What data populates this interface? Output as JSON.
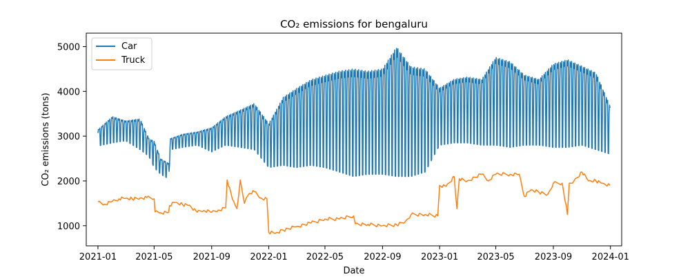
{
  "chart_data": {
    "type": "line",
    "title": "CO₂ emissions for bengaluru",
    "xlabel": "Date",
    "ylabel": "CO₂ emissions (tons)",
    "xlim": [
      "2020-12-07",
      "2024-01-25"
    ],
    "ylim": [
      550,
      5300
    ],
    "x_ticks": [
      "2021-01",
      "2021-05",
      "2021-09",
      "2022-01",
      "2022-05",
      "2022-09",
      "2023-01",
      "2023-05",
      "2023-09",
      "2024-01"
    ],
    "y_ticks": [
      1000,
      2000,
      3000,
      4000,
      5000
    ],
    "grid": false,
    "legend_position": "top-left",
    "series": [
      {
        "name": "Car",
        "color": "#1f77b4",
        "envelope": [
          {
            "x": "2021-01-01",
            "low": 2780,
            "high": 3150
          },
          {
            "x": "2021-02-01",
            "low": 2850,
            "high": 3450
          },
          {
            "x": "2021-03-01",
            "low": 2900,
            "high": 3350
          },
          {
            "x": "2021-04-01",
            "low": 2700,
            "high": 3400
          },
          {
            "x": "2021-04-20",
            "low": 2550,
            "high": 2950
          },
          {
            "x": "2021-05-01",
            "low": 2300,
            "high": 2900
          },
          {
            "x": "2021-05-15",
            "low": 2150,
            "high": 2500
          },
          {
            "x": "2021-06-01",
            "low": 2050,
            "high": 2400
          },
          {
            "x": "2021-06-05",
            "low": 2700,
            "high": 2950
          },
          {
            "x": "2021-07-01",
            "low": 2750,
            "high": 3050
          },
          {
            "x": "2021-08-01",
            "low": 2800,
            "high": 3100
          },
          {
            "x": "2021-09-01",
            "low": 2650,
            "high": 3200
          },
          {
            "x": "2021-10-01",
            "low": 2800,
            "high": 3450
          },
          {
            "x": "2021-11-01",
            "low": 2750,
            "high": 3600
          },
          {
            "x": "2021-12-01",
            "low": 2700,
            "high": 3750
          },
          {
            "x": "2022-01-01",
            "low": 2300,
            "high": 3300
          },
          {
            "x": "2022-02-01",
            "low": 2350,
            "high": 3900
          },
          {
            "x": "2022-03-01",
            "low": 2300,
            "high": 4100
          },
          {
            "x": "2022-04-01",
            "low": 2350,
            "high": 4300
          },
          {
            "x": "2022-05-01",
            "low": 2300,
            "high": 4400
          },
          {
            "x": "2022-06-01",
            "low": 2200,
            "high": 4500
          },
          {
            "x": "2022-07-01",
            "low": 2100,
            "high": 4550
          },
          {
            "x": "2022-08-01",
            "low": 2150,
            "high": 4500
          },
          {
            "x": "2022-09-01",
            "low": 2150,
            "high": 4550
          },
          {
            "x": "2022-10-01",
            "low": 2100,
            "high": 5050
          },
          {
            "x": "2022-11-01",
            "low": 2100,
            "high": 4600
          },
          {
            "x": "2022-12-01",
            "low": 2200,
            "high": 4550
          },
          {
            "x": "2023-01-01",
            "low": 2800,
            "high": 4100
          },
          {
            "x": "2023-02-01",
            "low": 2850,
            "high": 4300
          },
          {
            "x": "2023-03-01",
            "low": 2850,
            "high": 4350
          },
          {
            "x": "2023-04-01",
            "low": 2800,
            "high": 4300
          },
          {
            "x": "2023-05-01",
            "low": 2800,
            "high": 4800
          },
          {
            "x": "2023-06-01",
            "low": 2750,
            "high": 4700
          },
          {
            "x": "2023-07-01",
            "low": 2800,
            "high": 4400
          },
          {
            "x": "2023-08-01",
            "low": 2800,
            "high": 4300
          },
          {
            "x": "2023-09-01",
            "low": 2750,
            "high": 4650
          },
          {
            "x": "2023-10-01",
            "low": 2750,
            "high": 4750
          },
          {
            "x": "2023-11-01",
            "low": 2800,
            "high": 4600
          },
          {
            "x": "2023-12-01",
            "low": 2700,
            "high": 4450
          },
          {
            "x": "2023-12-31",
            "low": 2600,
            "high": 3700
          }
        ]
      },
      {
        "name": "Truck",
        "color": "#ff7f0e",
        "values": [
          [
            "2021-01-01",
            1530
          ],
          [
            "2021-01-15",
            1480
          ],
          [
            "2021-02-01",
            1550
          ],
          [
            "2021-02-15",
            1600
          ],
          [
            "2021-03-01",
            1610
          ],
          [
            "2021-03-15",
            1600
          ],
          [
            "2021-04-01",
            1620
          ],
          [
            "2021-04-15",
            1630
          ],
          [
            "2021-05-01",
            1600
          ],
          [
            "2021-05-03",
            1310
          ],
          [
            "2021-05-15",
            1290
          ],
          [
            "2021-06-01",
            1300
          ],
          [
            "2021-06-03",
            1450
          ],
          [
            "2021-06-15",
            1520
          ],
          [
            "2021-07-01",
            1470
          ],
          [
            "2021-07-15",
            1460
          ],
          [
            "2021-08-01",
            1300
          ],
          [
            "2021-08-15",
            1340
          ],
          [
            "2021-09-01",
            1300
          ],
          [
            "2021-09-15",
            1350
          ],
          [
            "2021-10-01",
            1400
          ],
          [
            "2021-10-04",
            2020
          ],
          [
            "2021-10-15",
            1600
          ],
          [
            "2021-10-25",
            1380
          ],
          [
            "2021-11-01",
            2020
          ],
          [
            "2021-11-10",
            1500
          ],
          [
            "2021-11-20",
            1720
          ],
          [
            "2021-12-01",
            1760
          ],
          [
            "2021-12-15",
            1620
          ],
          [
            "2021-12-28",
            1600
          ],
          [
            "2022-01-01",
            850
          ],
          [
            "2022-01-15",
            830
          ],
          [
            "2022-02-01",
            900
          ],
          [
            "2022-03-01",
            980
          ],
          [
            "2022-04-01",
            1060
          ],
          [
            "2022-05-01",
            1150
          ],
          [
            "2022-06-01",
            1150
          ],
          [
            "2022-07-01",
            1220
          ],
          [
            "2022-07-05",
            1040
          ],
          [
            "2022-08-01",
            1030
          ],
          [
            "2022-09-01",
            1000
          ],
          [
            "2022-10-01",
            1020
          ],
          [
            "2022-10-20",
            1100
          ],
          [
            "2022-11-01",
            1250
          ],
          [
            "2022-12-01",
            1250
          ],
          [
            "2022-12-28",
            1220
          ],
          [
            "2023-01-01",
            1900
          ],
          [
            "2023-01-15",
            1880
          ],
          [
            "2023-02-01",
            2100
          ],
          [
            "2023-02-07",
            1380
          ],
          [
            "2023-02-12",
            2050
          ],
          [
            "2023-03-01",
            2000
          ],
          [
            "2023-04-01",
            2150
          ],
          [
            "2023-04-15",
            2000
          ],
          [
            "2023-05-01",
            2150
          ],
          [
            "2023-06-01",
            2150
          ],
          [
            "2023-06-20",
            2150
          ],
          [
            "2023-07-01",
            1650
          ],
          [
            "2023-07-15",
            1800
          ],
          [
            "2023-08-01",
            1750
          ],
          [
            "2023-08-20",
            1700
          ],
          [
            "2023-09-01",
            1950
          ],
          [
            "2023-09-20",
            1950
          ],
          [
            "2023-10-01",
            1250
          ],
          [
            "2023-10-05",
            1950
          ],
          [
            "2023-10-15",
            2000
          ],
          [
            "2023-11-01",
            2200
          ],
          [
            "2023-11-15",
            2000
          ],
          [
            "2023-12-01",
            2000
          ],
          [
            "2023-12-15",
            1950
          ],
          [
            "2023-12-31",
            1900
          ]
        ]
      }
    ]
  }
}
